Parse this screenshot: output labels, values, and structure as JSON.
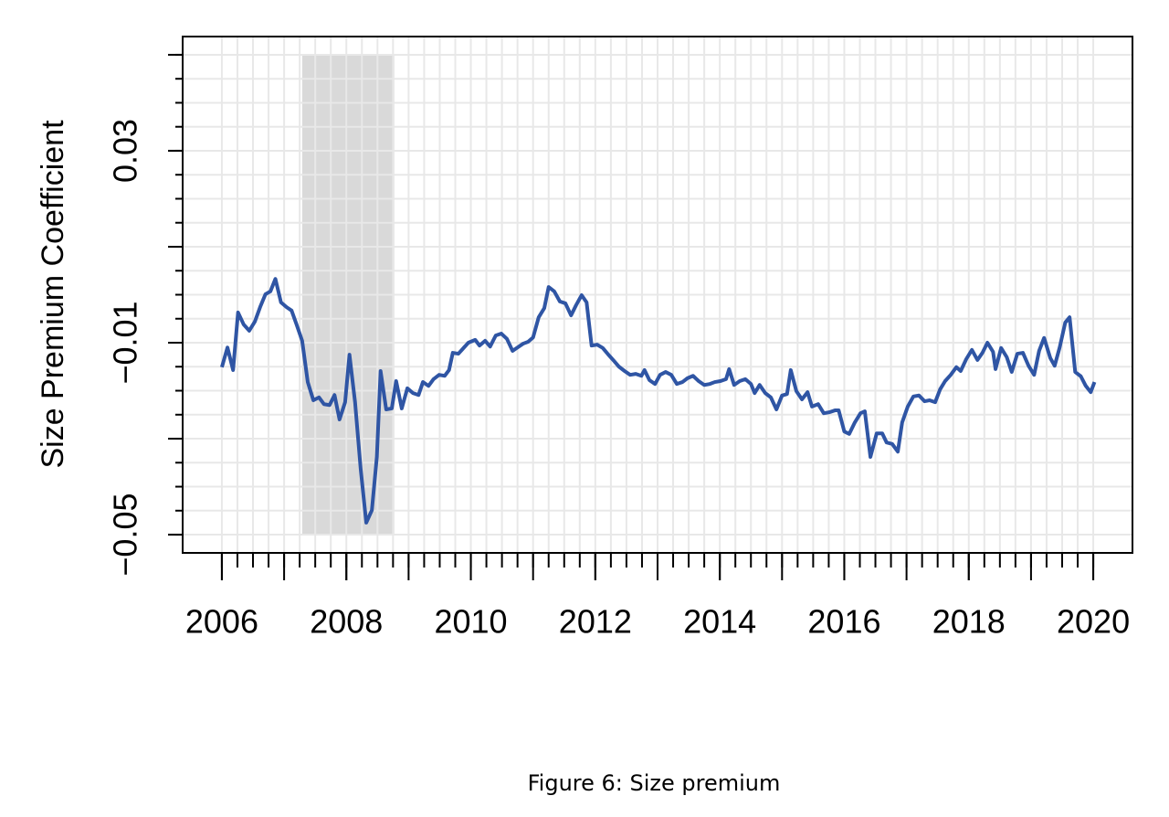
{
  "chart_data": {
    "type": "line",
    "y_label": "Size Premium Coefficient",
    "caption": "Figure 6:   Size premium",
    "xlim": [
      2005.37,
      2020.63
    ],
    "ylim": [
      -0.0538,
      0.0538
    ],
    "xticks": [
      2006,
      2008,
      2010,
      2012,
      2014,
      2016,
      2018,
      2020
    ],
    "x_minor_ticks": [
      2006,
      2006.25,
      2006.5,
      2006.75,
      2007,
      2007.25,
      2007.5,
      2007.75,
      2008,
      2008.25,
      2008.5,
      2008.75,
      2009,
      2009.25,
      2009.5,
      2009.75,
      2010,
      2010.25,
      2010.5,
      2010.75,
      2011,
      2011.25,
      2011.5,
      2011.75,
      2012,
      2012.25,
      2012.5,
      2012.75,
      2013,
      2013.25,
      2013.5,
      2013.75,
      2014,
      2014.25,
      2014.5,
      2014.75,
      2015,
      2015.25,
      2015.5,
      2015.75,
      2016,
      2016.25,
      2016.5,
      2016.75,
      2017,
      2017.25,
      2017.5,
      2017.75,
      2018,
      2018.25,
      2018.5,
      2018.75,
      2019,
      2019.25,
      2019.5,
      2019.75,
      2020
    ],
    "x_major_ticks": [
      2006,
      2007,
      2008,
      2009,
      2010,
      2011,
      2012,
      2013,
      2014,
      2015,
      2016,
      2017,
      2018,
      2019,
      2020
    ],
    "yticks": [
      {
        "value": -0.05,
        "label": "−0.05"
      },
      {
        "value": -0.01,
        "label": "−0.01"
      },
      0.03
    ],
    "y_major_ticks": [
      -0.05,
      -0.03,
      -0.01,
      0.01,
      0.03,
      0.05
    ],
    "y_minor_ticks": [
      -0.05,
      -0.045,
      -0.04,
      -0.035,
      -0.03,
      -0.025,
      -0.02,
      -0.015,
      -0.01,
      -0.005,
      0,
      0.005,
      0.01,
      0.015,
      0.02,
      0.025,
      0.03,
      0.035,
      0.04,
      0.045,
      0.05
    ],
    "grid": true,
    "shaded_region": {
      "x": [
        2007.29,
        2008.77
      ],
      "y": [
        -0.05,
        0.05
      ],
      "color": "#d9d9d9"
    },
    "series": [
      {
        "color": "#2f55a4",
        "x": [
          2006.0,
          2006.09,
          2006.18,
          2006.26,
          2006.35,
          2006.44,
          2006.53,
          2006.62,
          2006.7,
          2006.78,
          2006.86,
          2006.95,
          2007.04,
          2007.12,
          2007.2,
          2007.29,
          2007.38,
          2007.47,
          2007.56,
          2007.64,
          2007.73,
          2007.81,
          2007.89,
          2007.98,
          2008.05,
          2008.14,
          2008.23,
          2008.32,
          2008.41,
          2008.49,
          2008.55,
          2008.64,
          2008.73,
          2008.8,
          2008.89,
          2008.98,
          2009.07,
          2009.16,
          2009.23,
          2009.32,
          2009.4,
          2009.49,
          2009.58,
          2009.65,
          2009.71,
          2009.8,
          2009.89,
          2009.96,
          2010.07,
          2010.14,
          2010.23,
          2010.31,
          2010.4,
          2010.49,
          2010.58,
          2010.67,
          2010.75,
          2010.84,
          2010.92,
          2011.0,
          2011.09,
          2011.18,
          2011.25,
          2011.34,
          2011.43,
          2011.52,
          2011.61,
          2011.69,
          2011.78,
          2011.86,
          2011.94,
          2012.03,
          2012.12,
          2012.21,
          2012.3,
          2012.38,
          2012.47,
          2012.56,
          2012.65,
          2012.74,
          2012.79,
          2012.87,
          2012.96,
          2013.04,
          2013.13,
          2013.22,
          2013.31,
          2013.4,
          2013.48,
          2013.57,
          2013.66,
          2013.75,
          2013.84,
          2013.92,
          2014.01,
          2014.1,
          2014.15,
          2014.23,
          2014.32,
          2014.41,
          2014.5,
          2014.56,
          2014.64,
          2014.73,
          2014.82,
          2014.91,
          2015.0,
          2015.08,
          2015.14,
          2015.23,
          2015.32,
          2015.41,
          2015.48,
          2015.58,
          2015.67,
          2015.76,
          2015.85,
          2015.91,
          2016.0,
          2016.08,
          2016.17,
          2016.26,
          2016.33,
          2016.42,
          2016.52,
          2016.61,
          2016.68,
          2016.77,
          2016.86,
          2016.93,
          2017.02,
          2017.11,
          2017.2,
          2017.29,
          2017.37,
          2017.46,
          2017.54,
          2017.62,
          2017.71,
          2017.8,
          2017.87,
          2017.96,
          2018.05,
          2018.14,
          2018.22,
          2018.3,
          2018.39,
          2018.43,
          2018.52,
          2018.61,
          2018.69,
          2018.78,
          2018.87,
          2018.96,
          2019.05,
          2019.13,
          2019.21,
          2019.31,
          2019.38,
          2019.46,
          2019.55,
          2019.62,
          2019.71,
          2019.8,
          2019.88,
          2019.96,
          2020.02
        ],
        "values": [
          -0.0151,
          -0.011,
          -0.0157,
          -0.0037,
          -0.0062,
          -0.0075,
          -0.0056,
          -0.0024,
          0.0001,
          0.0007,
          0.0033,
          -0.0016,
          -0.0026,
          -0.0033,
          -0.0062,
          -0.0096,
          -0.0182,
          -0.022,
          -0.0214,
          -0.0228,
          -0.023,
          -0.0209,
          -0.026,
          -0.0224,
          -0.0125,
          -0.0224,
          -0.0363,
          -0.0475,
          -0.0449,
          -0.0338,
          -0.0159,
          -0.0239,
          -0.0237,
          -0.018,
          -0.0237,
          -0.0195,
          -0.0205,
          -0.0209,
          -0.0182,
          -0.019,
          -0.0176,
          -0.0167,
          -0.0169,
          -0.0157,
          -0.0121,
          -0.0123,
          -0.011,
          -0.01,
          -0.0094,
          -0.0106,
          -0.0096,
          -0.0108,
          -0.0085,
          -0.0081,
          -0.0092,
          -0.0117,
          -0.011,
          -0.0102,
          -0.0098,
          -0.0089,
          -0.0047,
          -0.0028,
          0.0016,
          0.0007,
          -0.0014,
          -0.0018,
          -0.0043,
          -0.0022,
          -0.0001,
          -0.0016,
          -0.0106,
          -0.0104,
          -0.0111,
          -0.0125,
          -0.0138,
          -0.015,
          -0.0159,
          -0.0167,
          -0.0165,
          -0.0169,
          -0.0157,
          -0.0178,
          -0.0186,
          -0.0167,
          -0.0161,
          -0.0167,
          -0.0186,
          -0.0182,
          -0.0174,
          -0.0169,
          -0.018,
          -0.0188,
          -0.0186,
          -0.0182,
          -0.018,
          -0.0176,
          -0.0155,
          -0.0188,
          -0.018,
          -0.0176,
          -0.0186,
          -0.0205,
          -0.0188,
          -0.0205,
          -0.0214,
          -0.0239,
          -0.021,
          -0.0207,
          -0.0157,
          -0.0201,
          -0.0218,
          -0.0203,
          -0.0233,
          -0.0228,
          -0.0247,
          -0.0245,
          -0.0241,
          -0.0241,
          -0.0285,
          -0.029,
          -0.0266,
          -0.0247,
          -0.0243,
          -0.0338,
          -0.0289,
          -0.0289,
          -0.0308,
          -0.0311,
          -0.0327,
          -0.0266,
          -0.0233,
          -0.0212,
          -0.021,
          -0.0222,
          -0.022,
          -0.0224,
          -0.0197,
          -0.018,
          -0.0167,
          -0.0151,
          -0.0159,
          -0.0134,
          -0.0115,
          -0.0136,
          -0.0121,
          -0.01,
          -0.0119,
          -0.0155,
          -0.0111,
          -0.013,
          -0.0161,
          -0.0123,
          -0.0121,
          -0.0148,
          -0.0167,
          -0.0117,
          -0.009,
          -0.0132,
          -0.0148,
          -0.011,
          -0.0058,
          -0.0047,
          -0.0161,
          -0.017,
          -0.019,
          -0.0203,
          -0.0182
        ]
      }
    ]
  }
}
